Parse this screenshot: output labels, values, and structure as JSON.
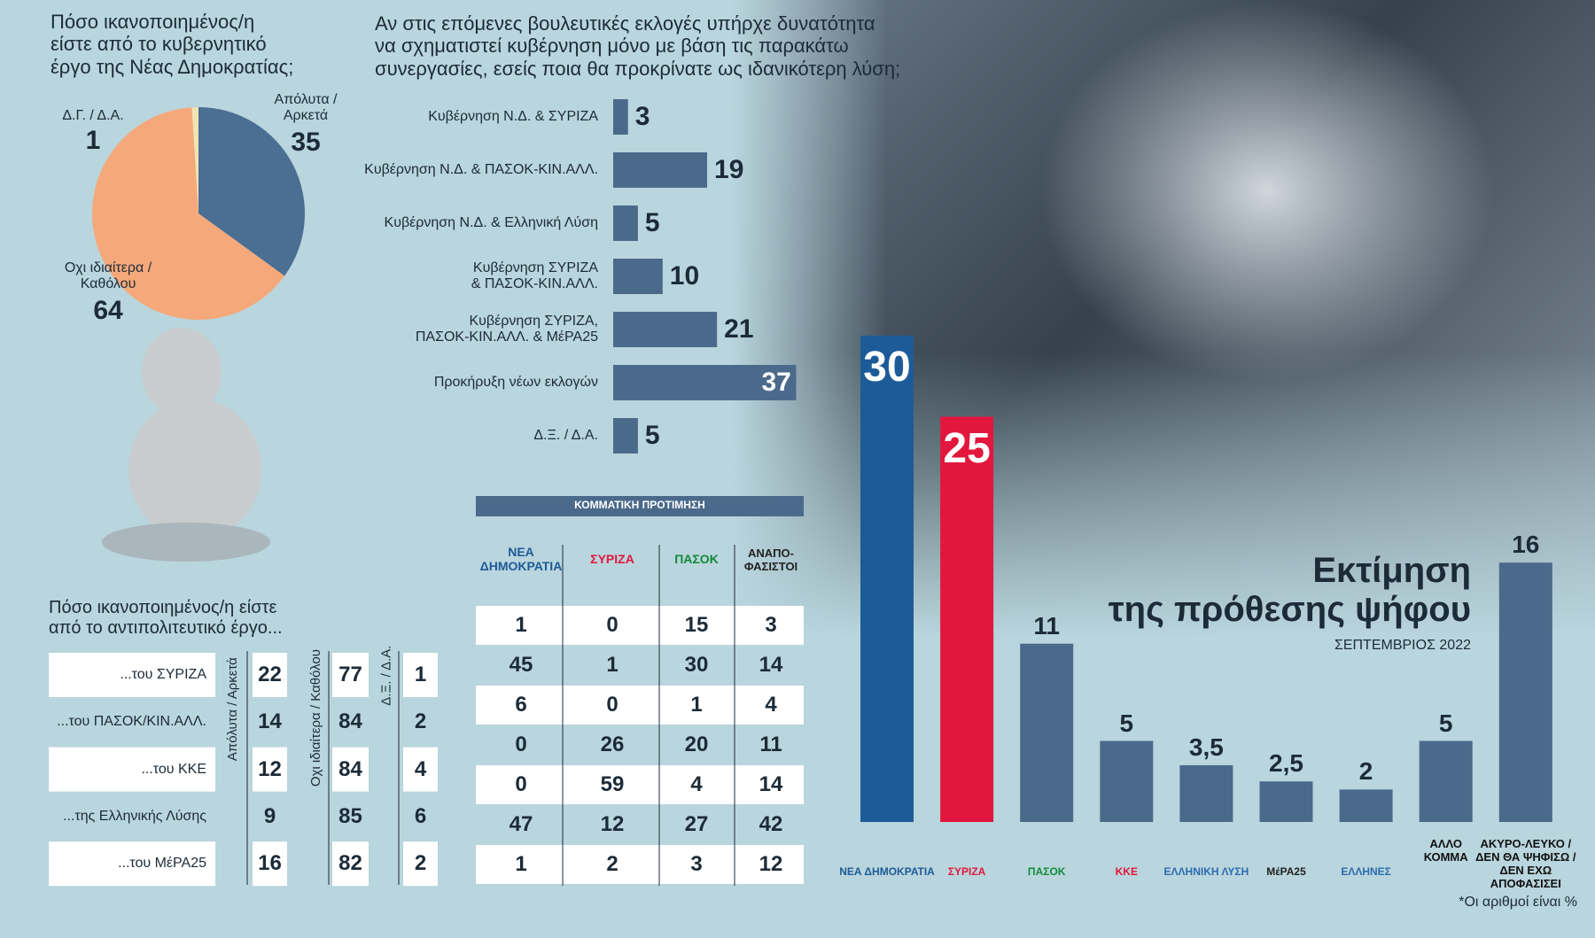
{
  "chart_data": [
    {
      "type": "pie",
      "title": "Πόσο ικανοποιημένος/η\nείστε από το κυβερνητικό\nέργο της Νέας Δημοκρατίας;",
      "categories": [
        "Απόλυτα /\nΑρκετά",
        "Οχι ιδιαίτερα /\nΚαθόλου",
        "Δ.Γ. / Δ.Α."
      ],
      "values": [
        35,
        64,
        1
      ],
      "colors": [
        "#4b6e93",
        "#f5a97a",
        "#f2e3b3"
      ]
    },
    {
      "type": "hbar",
      "title": "Αν στις επόμενες βουλευτικές εκλογές υπήρχε δυνατότητα\nνα σχηματιστεί κυβέρνηση μόνο με βάση τις παρακάτω\nσυνεργασίες, εσείς ποια θα προκρίνατε ως ιδανικότερη λύση;",
      "categories": [
        "Κυβέρνηση Ν.Δ. & ΣΥΡΙΖΑ",
        "Κυβέρνηση Ν.Δ. & ΠΑΣΟΚ-ΚΙΝ.ΑΛΛ.",
        "Κυβέρνηση Ν.Δ. & Ελληνική Λύση",
        "Κυβέρνηση ΣΥΡΙΖΑ\n& ΠΑΣΟΚ-ΚΙΝ.ΑΛΛ.",
        "Κυβέρνηση ΣΥΡΙΖΑ,\nΠΑΣΟΚ-ΚΙΝ.ΑΛΛ. & ΜέΡΑ25",
        "Προκήρυξη νέων εκλογών",
        "Δ.Ξ. / Δ.Α."
      ],
      "values": [
        3,
        19,
        5,
        10,
        21,
        37,
        5
      ],
      "color": "#4b6a8b"
    },
    {
      "type": "bar",
      "title": "Εκτίμηση\nτης πρόθεσης ψήφου",
      "subtitle": "ΣΕΠΤΕΜΒΡΙΟΣ 2022",
      "categories": [
        "ΝΕΑ ΔΗΜΟΚΡΑΤΙΑ",
        "ΣΥΡΙΖΑ",
        "ΠΑΣΟΚ",
        "ΚΚΕ",
        "ΕΛΛΗΝΙΚΗ ΛΥΣΗ",
        "ΜέΡΑ25",
        "ΕΛΛΗΝΕΣ",
        "ΑΛΛΟ\nΚΟΜΜΑ",
        "ΑΚΥΡΟ-ΛΕΥΚΟ /\nΔΕΝ ΘΑ ΨΗΦΙΣΩ /\nΔΕΝ ΕΧΩ ΑΠΟΦΑΣΙΣΕΙ"
      ],
      "values": [
        30,
        25,
        11,
        5,
        3.5,
        2.5,
        2,
        5,
        16
      ],
      "value_labels": [
        "30",
        "25",
        "11",
        "5",
        "3,5",
        "2,5",
        "2",
        "5",
        "16"
      ],
      "colors": [
        "#1d5b98",
        "#e2173d",
        "#4b6a8b",
        "#4b6a8b",
        "#4b6a8b",
        "#4b6a8b",
        "#4b6a8b",
        "#4b6a8b",
        "#4b6a8b"
      ],
      "label_colors": [
        "#1d5b98",
        "#e2173d",
        "#118a3a",
        "#e2173d",
        "#2b6cb0",
        "#222222",
        "#2b6cb0",
        "#111111",
        "#111111"
      ],
      "footnote": "*Οι αριθμοί είναι %"
    }
  ],
  "opposition_table": {
    "title": "Πόσο ικανοποιημένος/η είστε\nαπό το αντιπολιτευτικό έργο...",
    "columns": [
      "Απόλυτα / Αρκετά",
      "Οχι ιδιαίτερα / Καθόλου",
      "Δ.Ξ. / Δ.Α."
    ],
    "rows": [
      [
        "...του ΣΥΡΙΖΑ",
        "22",
        "77",
        "1"
      ],
      [
        "...του ΠΑΣΟΚ/ΚΙΝ.ΑΛΛ.",
        "14",
        "84",
        "2"
      ],
      [
        "...του ΚΚΕ",
        "12",
        "84",
        "4"
      ],
      [
        "...της Ελληνικής Λύσης",
        "9",
        "85",
        "6"
      ],
      [
        "...του ΜέΡΑ25",
        "16",
        "82",
        "2"
      ]
    ]
  },
  "party_table": {
    "title": "ΚΟΜΜΑΤΙΚΗ ΠΡΟΤΙΜΗΣΗ",
    "columns": [
      "ΝΕΑ ΔΗΜΟΚΡΑΤΙΑ",
      "ΣΥΡΙΖΑ",
      "ΠΑΣΟΚ",
      "ΑΝΑΠΟ-\nΦΑΣΙΣΤΟΙ"
    ],
    "column_colors": [
      "#1d5b98",
      "#e2173d",
      "#118a3a",
      "#222222"
    ],
    "rows": [
      [
        "1",
        "0",
        "15",
        "3"
      ],
      [
        "45",
        "1",
        "30",
        "14"
      ],
      [
        "6",
        "0",
        "1",
        "4"
      ],
      [
        "0",
        "26",
        "20",
        "11"
      ],
      [
        "0",
        "59",
        "4",
        "14"
      ],
      [
        "47",
        "12",
        "27",
        "42"
      ],
      [
        "1",
        "2",
        "3",
        "12"
      ]
    ]
  }
}
